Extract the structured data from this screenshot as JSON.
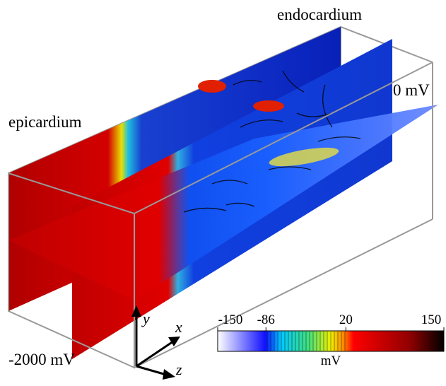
{
  "labels": {
    "endocardium": "endocardium",
    "epicardium": "epicardium",
    "top_potential": "0 mV",
    "bottom_potential": "-2000 mV"
  },
  "axes": {
    "x": "x",
    "y": "y",
    "z": "z"
  },
  "colorbar": {
    "lim": [
      -150,
      150
    ],
    "ticks": [
      -150,
      -86,
      20,
      150
    ],
    "label": "mV"
  }
}
